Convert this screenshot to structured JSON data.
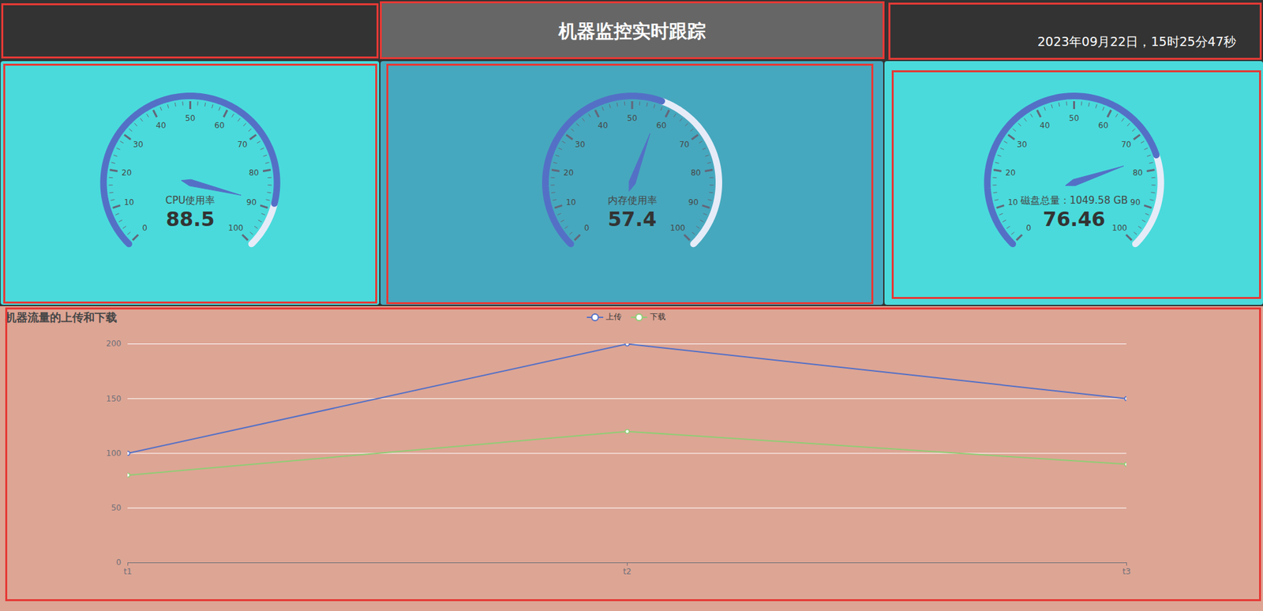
{
  "header": {
    "title": "机器监控实时跟踪",
    "datetime": "2023年09月22日，15时25分47秒"
  },
  "chart_data": [
    {
      "type": "gauge",
      "title": "CPU使用率",
      "value": 88.5,
      "ylim": [
        0,
        100
      ],
      "yticks": [
        0,
        10,
        20,
        30,
        40,
        50,
        60,
        70,
        80,
        90,
        100
      ],
      "color": "#5470c6"
    },
    {
      "type": "gauge",
      "title": "内存使用率",
      "value": 57.4,
      "ylim": [
        0,
        100
      ],
      "yticks": [
        0,
        10,
        20,
        30,
        40,
        50,
        60,
        70,
        80,
        90,
        100
      ],
      "color": "#5470c6"
    },
    {
      "type": "gauge",
      "title": "磁盘总量：1049.58 GB",
      "value": 76.46,
      "ylim": [
        0,
        100
      ],
      "yticks": [
        0,
        10,
        20,
        30,
        40,
        50,
        60,
        70,
        80,
        90,
        100
      ],
      "color": "#5470c6"
    },
    {
      "type": "line",
      "title": "机器流量的上传和下载",
      "categories": [
        "t1",
        "t2",
        "t3"
      ],
      "series": [
        {
          "name": "上传",
          "color": "#5470c6",
          "values": [
            100,
            200,
            150
          ]
        },
        {
          "name": "下载",
          "color": "#91cc75",
          "values": [
            80,
            120,
            90
          ]
        }
      ],
      "ylim": [
        0,
        200
      ],
      "yticks": [
        0,
        50,
        100,
        150,
        200
      ],
      "grid": true,
      "legend": "top",
      "marker": "circle"
    }
  ]
}
